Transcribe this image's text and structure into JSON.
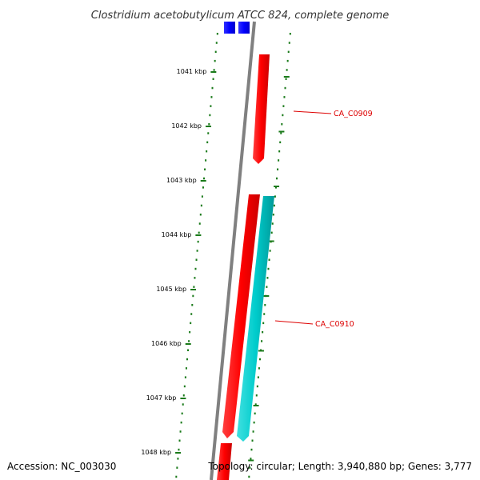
{
  "title": "Clostridium acetobutylicum ATCC 824, complete genome",
  "accession": "Accession: NC_003030",
  "topology": "Topology: circular; Length: 3,940,880 bp; Genes: 3,777",
  "scale": {
    "unit_labels": [
      "1041 kbp",
      "1042 kbp",
      "1043 kbp",
      "1044 kbp",
      "1045 kbp",
      "1046 kbp",
      "1047 kbp",
      "1048 kbp"
    ],
    "tick_color": "#1a7a1a"
  },
  "genes": [
    {
      "name": "CA_C0909",
      "strand": "forward",
      "color": "#ff0000",
      "labeled": true
    },
    {
      "name": "CA_C0910",
      "strand": "forward",
      "color": "#00cccc",
      "labeled": true
    },
    {
      "name": "",
      "strand": "forward",
      "color": "#ff0000",
      "labeled": false
    },
    {
      "name": "",
      "strand": "forward",
      "color": "#0000ff",
      "labeled": false
    }
  ],
  "colors": {
    "backbone": "#808080",
    "forward_red": "#ff0000",
    "cyan": "#00cccc",
    "blue": "#0000ff",
    "label_red": "#dd0000",
    "scale_green": "#1a7a1a"
  }
}
